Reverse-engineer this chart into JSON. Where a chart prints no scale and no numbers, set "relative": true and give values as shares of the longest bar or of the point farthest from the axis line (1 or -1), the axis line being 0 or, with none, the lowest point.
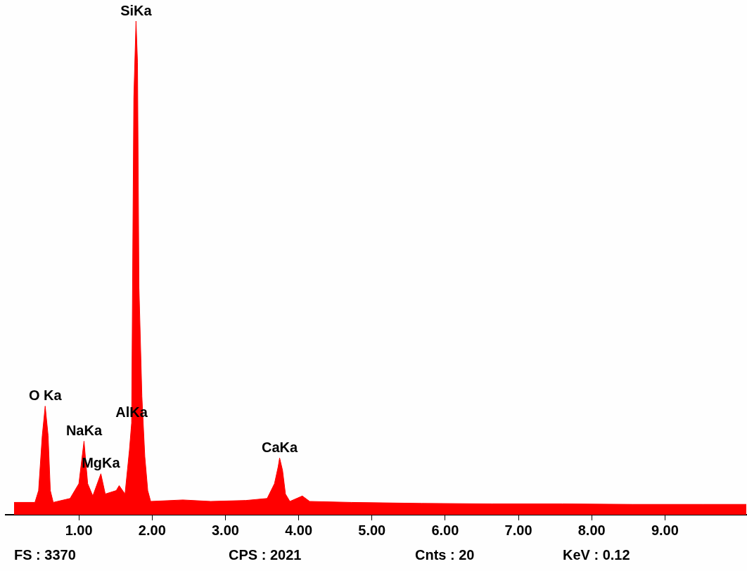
{
  "chart_data": {
    "type": "area",
    "relative": true,
    "color": "#ff0000",
    "x": [
      0.115,
      0.4,
      0.45,
      0.5,
      0.54,
      0.58,
      0.61,
      0.65,
      0.88,
      1.0,
      1.07,
      1.12,
      1.19,
      1.3,
      1.36,
      1.51,
      1.55,
      1.63,
      1.69,
      1.72,
      1.75,
      1.78,
      1.8,
      1.82,
      1.86,
      1.9,
      1.94,
      1.98,
      2.42,
      2.8,
      3.28,
      3.57,
      3.67,
      3.72,
      3.74,
      3.78,
      3.82,
      3.88,
      4.05,
      4.15,
      4.72,
      5.68,
      6.64,
      7.6,
      8.56,
      9.52,
      10.11
    ],
    "values": [
      0.025,
      0.025,
      0.049,
      0.16,
      0.22,
      0.16,
      0.049,
      0.025,
      0.033,
      0.063,
      0.149,
      0.063,
      0.038,
      0.083,
      0.042,
      0.049,
      0.059,
      0.042,
      0.131,
      0.186,
      0.845,
      1.0,
      0.917,
      0.46,
      0.24,
      0.118,
      0.049,
      0.027,
      0.03,
      0.027,
      0.029,
      0.033,
      0.063,
      0.097,
      0.115,
      0.09,
      0.042,
      0.027,
      0.038,
      0.027,
      0.025,
      0.023,
      0.022,
      0.022,
      0.021,
      0.021,
      0.021
    ],
    "xlim": [
      0,
      10.12
    ],
    "xticks": [
      {
        "value": 1,
        "label": "1.00"
      },
      {
        "value": 2,
        "label": "2.00"
      },
      {
        "value": 3,
        "label": "3.00"
      },
      {
        "value": 4,
        "label": "4.00"
      },
      {
        "value": 5,
        "label": "5.00"
      },
      {
        "value": 6,
        "label": "6.00"
      },
      {
        "value": 7,
        "label": "7.00"
      },
      {
        "value": 8,
        "label": "8.00"
      },
      {
        "value": 9,
        "label": "9.00"
      }
    ],
    "annotations": [
      {
        "text": "SiKa",
        "x": 1.78,
        "y": 1.0
      },
      {
        "text": "O Ka",
        "x": 0.54,
        "y": 0.22
      },
      {
        "text": "AlKa",
        "x": 1.72,
        "y": 0.186
      },
      {
        "text": "NaKa",
        "x": 1.07,
        "y": 0.149
      },
      {
        "text": "MgKa",
        "x": 1.3,
        "y": 0.083
      },
      {
        "text": "CaKa",
        "x": 3.74,
        "y": 0.115
      },
      "FS : 3370",
      "CPS : 2021",
      "Cnts : 20",
      "KeV : 0.12"
    ],
    "grid": false,
    "legend": false
  }
}
